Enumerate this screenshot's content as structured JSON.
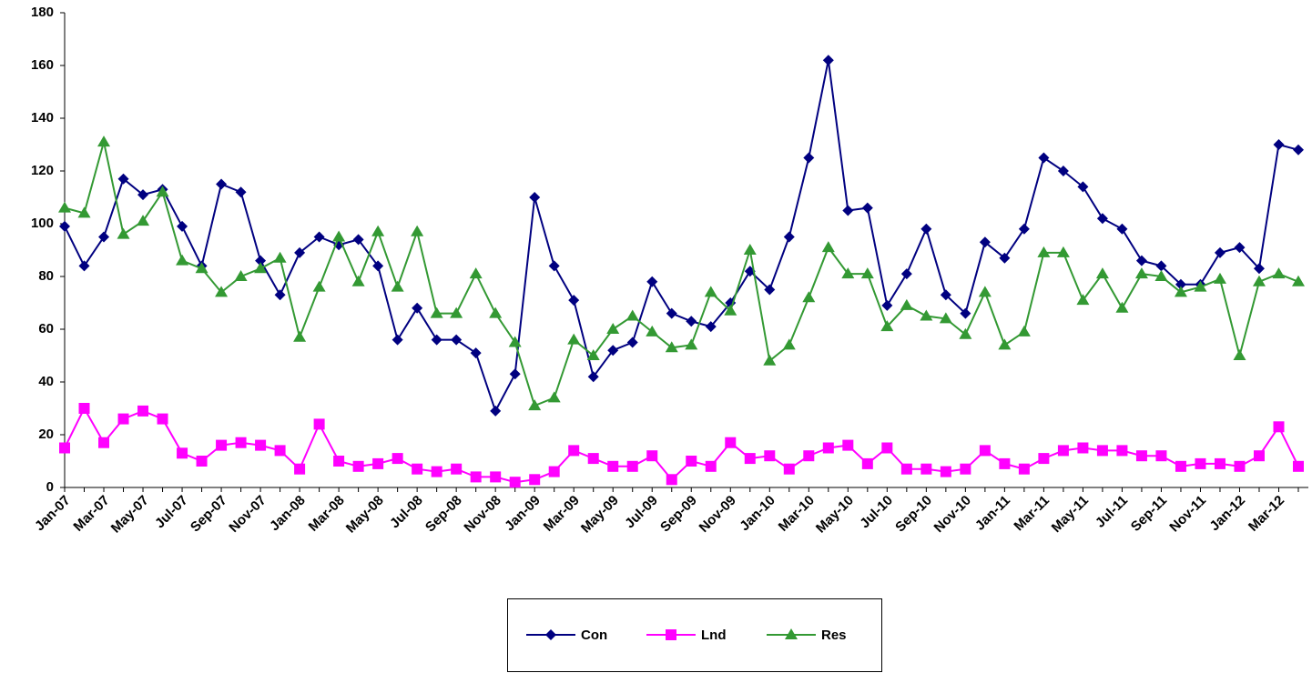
{
  "chart_data": {
    "type": "line",
    "categories": [
      "Jan-07",
      null,
      "Mar-07",
      null,
      "May-07",
      null,
      "Jul-07",
      null,
      "Sep-07",
      null,
      "Nov-07",
      null,
      "Jan-08",
      null,
      "Mar-08",
      null,
      "May-08",
      null,
      "Jul-08",
      null,
      "Sep-08",
      null,
      "Nov-08",
      null,
      "Jan-09",
      null,
      "Mar-09",
      null,
      "May-09",
      null,
      "Jul-09",
      null,
      "Sep-09",
      null,
      "Nov-09",
      null,
      "Jan-10",
      null,
      "Mar-10",
      null,
      "May-10",
      null,
      "Jul-10",
      null,
      "Sep-10",
      null,
      "Nov-10",
      null,
      "Jan-11",
      null,
      "Mar-11",
      null,
      "May-11",
      null,
      "Jul-11",
      null,
      "Sep-11",
      null,
      "Nov-11",
      null,
      "Jan-12",
      null,
      "Mar-12",
      null
    ],
    "series": [
      {
        "name": "Con",
        "color": "#000080",
        "marker": "diamond",
        "values": [
          99,
          84,
          95,
          117,
          111,
          113,
          99,
          84,
          115,
          112,
          86,
          73,
          89,
          95,
          92,
          94,
          84,
          56,
          68,
          56,
          56,
          51,
          29,
          43,
          110,
          84,
          71,
          42,
          52,
          55,
          78,
          66,
          63,
          61,
          70,
          82,
          75,
          95,
          125,
          162,
          105,
          106,
          69,
          81,
          98,
          73,
          66,
          93,
          87,
          98,
          125,
          120,
          114,
          102,
          98,
          86,
          84,
          77,
          77,
          89,
          91,
          83,
          130,
          128
        ]
      },
      {
        "name": "Lnd",
        "color": "#ff00ff",
        "marker": "square",
        "values": [
          15,
          30,
          17,
          26,
          29,
          26,
          13,
          10,
          16,
          17,
          16,
          14,
          7,
          24,
          10,
          8,
          9,
          11,
          7,
          6,
          7,
          4,
          4,
          2,
          3,
          6,
          14,
          11,
          8,
          8,
          12,
          3,
          10,
          8,
          17,
          11,
          12,
          7,
          12,
          15,
          16,
          9,
          15,
          7,
          7,
          6,
          7,
          14,
          9,
          7,
          11,
          14,
          15,
          14,
          14,
          12,
          12,
          8,
          9,
          9,
          8,
          12,
          23,
          8
        ]
      },
      {
        "name": "Res",
        "color": "#339933",
        "marker": "triangle",
        "values": [
          106,
          104,
          131,
          96,
          101,
          112,
          86,
          83,
          74,
          80,
          83,
          87,
          57,
          76,
          95,
          78,
          97,
          76,
          97,
          66,
          66,
          81,
          66,
          55,
          31,
          34,
          56,
          50,
          60,
          65,
          59,
          53,
          54,
          74,
          67,
          90,
          48,
          54,
          72,
          91,
          81,
          81,
          61,
          69,
          65,
          64,
          58,
          74,
          54,
          59,
          89,
          89,
          71,
          81,
          68,
          81,
          80,
          74,
          76,
          79,
          50,
          78,
          81,
          78
        ]
      }
    ],
    "ylim": [
      0,
      180
    ],
    "yticks": [
      0,
      20,
      40,
      60,
      80,
      100,
      120,
      140,
      160,
      180
    ],
    "grid": false,
    "legend": "bottom"
  }
}
